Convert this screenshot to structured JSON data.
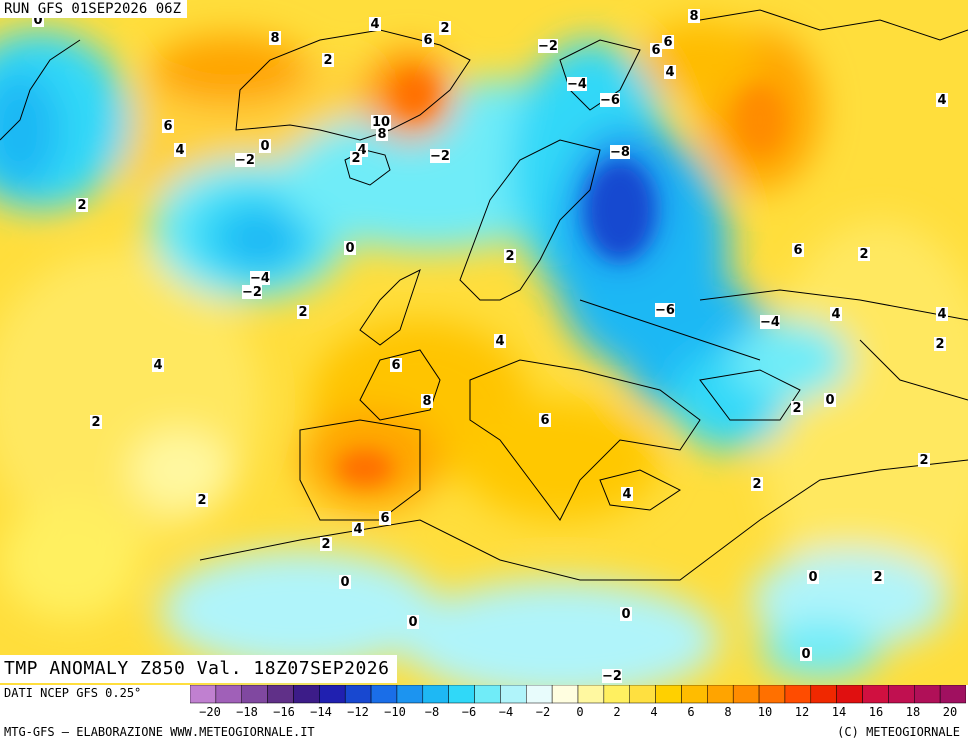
{
  "header": {
    "run_label": "RUN GFS 01SEP2026 06Z"
  },
  "map": {
    "title": "TMP ANOMALY Z850 Val. 18Z07SEP2026",
    "contour_labels": [
      "0",
      "4",
      "2",
      "8",
      "6",
      "-2",
      "2",
      "8",
      "6",
      "6",
      "4",
      "4",
      "2",
      "10",
      "8",
      "-2",
      "-2",
      "4",
      "2",
      "6",
      "4",
      "-4",
      "-6",
      "-8",
      "0",
      "2",
      "0",
      "-4",
      "-2",
      "-6",
      "-4",
      "2",
      "2",
      "6",
      "2",
      "4",
      "4",
      "4",
      "6",
      "8",
      "2",
      "0",
      "2",
      "6",
      "2",
      "4",
      "2",
      "2",
      "4",
      "6",
      "2",
      "4",
      "0",
      "2",
      "0",
      "0",
      "0",
      "2",
      "0",
      "-2"
    ]
  },
  "legend": {
    "source": "DATI NCEP GFS 0.25°",
    "credit": "MTG-GFS – ELABORAZIONE WWW.METEOGIORNALE.IT",
    "copyright": "(C) METEOGIORNALE",
    "ticks": [
      "-20",
      "-18",
      "-16",
      "-14",
      "-12",
      "-10",
      "-8",
      "-6",
      "-4",
      "-2",
      "0",
      "2",
      "4",
      "6",
      "8",
      "10",
      "12",
      "14",
      "16",
      "18",
      "20"
    ],
    "colors": [
      "#c080d0",
      "#a060b8",
      "#8048a0",
      "#603088",
      "#3c1c88",
      "#2020b0",
      "#1848d0",
      "#1a6ee8",
      "#1c94f0",
      "#1eb8f4",
      "#30d8f8",
      "#70ecf8",
      "#b0f4fa",
      "#e8fcfc",
      "#fffee0",
      "#fff8a0",
      "#fff060",
      "#ffe040",
      "#ffd000",
      "#ffbc00",
      "#ffa400",
      "#ff8c00",
      "#ff7000",
      "#ff4c00",
      "#f02800",
      "#e01010",
      "#d01040",
      "#c01050",
      "#b01058",
      "#a01060"
    ]
  }
}
